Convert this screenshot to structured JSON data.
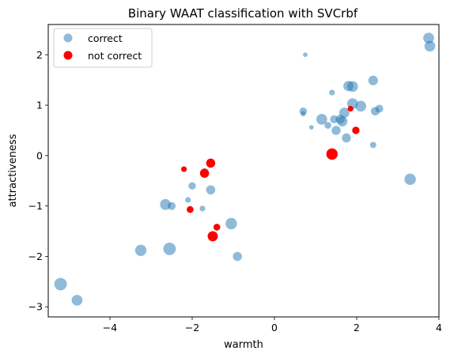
{
  "chart_data": {
    "type": "scatter",
    "title": "Binary WAAT classification with SVCrbf",
    "xlabel": "warmth",
    "ylabel": "attractiveness",
    "xlim": [
      -5.5,
      4.0
    ],
    "ylim": [
      -3.2,
      2.6
    ],
    "xticks": [
      -4,
      -2,
      0,
      2,
      4
    ],
    "yticks": [
      -3,
      -2,
      -1,
      0,
      1,
      2
    ],
    "grid": false,
    "legend_position": "top-left",
    "series": [
      {
        "name": "correct",
        "color": "#1f77b4",
        "alpha": 0.5,
        "points": [
          {
            "x": -5.2,
            "y": -2.55,
            "s": 2.2
          },
          {
            "x": -4.8,
            "y": -2.87,
            "s": 1.9
          },
          {
            "x": -3.25,
            "y": -1.88,
            "s": 2.0
          },
          {
            "x": -2.55,
            "y": -1.85,
            "s": 2.2
          },
          {
            "x": -2.65,
            "y": -0.97,
            "s": 1.9
          },
          {
            "x": -2.5,
            "y": -1.0,
            "s": 1.4
          },
          {
            "x": -2.1,
            "y": -0.88,
            "s": 1.0
          },
          {
            "x": -2.0,
            "y": -0.6,
            "s": 1.3
          },
          {
            "x": -1.75,
            "y": -1.05,
            "s": 1.0
          },
          {
            "x": -1.55,
            "y": -0.68,
            "s": 1.6
          },
          {
            "x": -1.7,
            "y": -0.3,
            "s": 0.9
          },
          {
            "x": -1.05,
            "y": -1.35,
            "s": 2.0
          },
          {
            "x": -0.9,
            "y": -2.0,
            "s": 1.6
          },
          {
            "x": 0.75,
            "y": 2.0,
            "s": 0.8
          },
          {
            "x": 0.7,
            "y": 0.88,
            "s": 1.3
          },
          {
            "x": 0.7,
            "y": 0.83,
            "s": 0.9
          },
          {
            "x": 0.9,
            "y": 0.56,
            "s": 0.8
          },
          {
            "x": 1.15,
            "y": 0.72,
            "s": 1.9
          },
          {
            "x": 1.3,
            "y": 0.6,
            "s": 1.2
          },
          {
            "x": 1.4,
            "y": 1.25,
            "s": 1.0
          },
          {
            "x": 1.45,
            "y": 0.72,
            "s": 1.4
          },
          {
            "x": 1.5,
            "y": 0.5,
            "s": 1.6
          },
          {
            "x": 1.6,
            "y": 0.72,
            "s": 1.6
          },
          {
            "x": 1.65,
            "y": 0.68,
            "s": 1.8
          },
          {
            "x": 1.7,
            "y": 0.85,
            "s": 1.8
          },
          {
            "x": 1.75,
            "y": 0.35,
            "s": 1.6
          },
          {
            "x": 1.8,
            "y": 1.38,
            "s": 1.8
          },
          {
            "x": 1.9,
            "y": 1.37,
            "s": 1.9
          },
          {
            "x": 1.9,
            "y": 1.03,
            "s": 1.9
          },
          {
            "x": 2.1,
            "y": 0.98,
            "s": 1.9
          },
          {
            "x": 2.4,
            "y": 1.49,
            "s": 1.7
          },
          {
            "x": 2.45,
            "y": 0.88,
            "s": 1.5
          },
          {
            "x": 2.55,
            "y": 0.93,
            "s": 1.4
          },
          {
            "x": 2.4,
            "y": 0.21,
            "s": 1.1
          },
          {
            "x": 3.3,
            "y": -0.47,
            "s": 2.0
          },
          {
            "x": 3.75,
            "y": 2.33,
            "s": 1.9
          },
          {
            "x": 3.78,
            "y": 2.17,
            "s": 1.9
          }
        ]
      },
      {
        "name": "not correct",
        "color": "#ff0000",
        "alpha": 1.0,
        "points": [
          {
            "x": -2.2,
            "y": -0.27,
            "s": 1.0
          },
          {
            "x": -1.7,
            "y": -0.35,
            "s": 1.6
          },
          {
            "x": -1.55,
            "y": -0.15,
            "s": 1.6
          },
          {
            "x": -2.05,
            "y": -1.07,
            "s": 1.2
          },
          {
            "x": -1.4,
            "y": -1.42,
            "s": 1.2
          },
          {
            "x": -1.5,
            "y": -1.6,
            "s": 1.8
          },
          {
            "x": 1.4,
            "y": 0.03,
            "s": 2.0
          },
          {
            "x": 1.85,
            "y": 0.93,
            "s": 1.0
          },
          {
            "x": 1.98,
            "y": 0.5,
            "s": 1.3
          }
        ]
      }
    ]
  }
}
